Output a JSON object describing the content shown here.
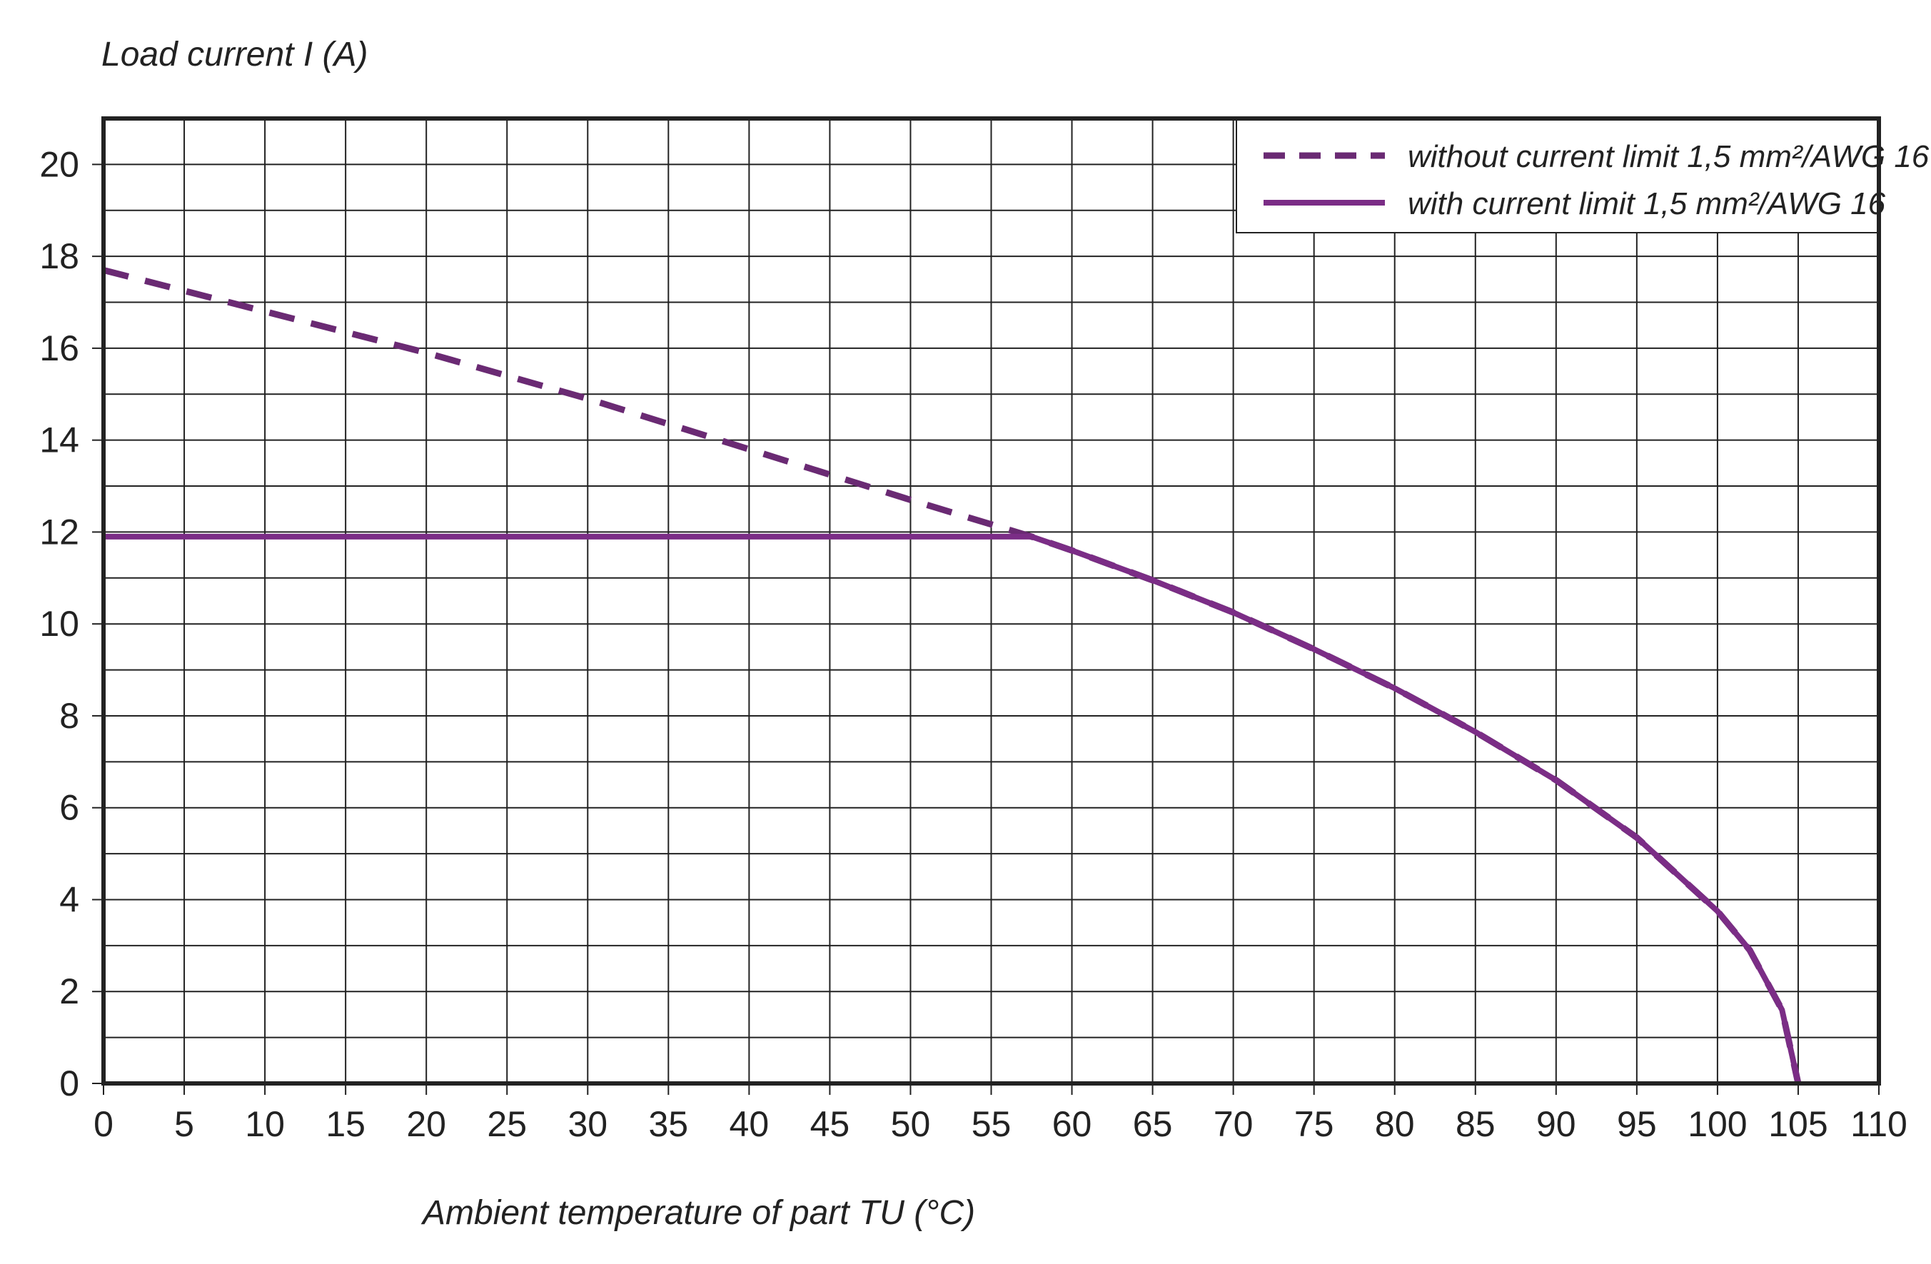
{
  "chart_data": {
    "type": "line",
    "ylabel": "Load current I (A)",
    "xlabel": "Ambient temperature of part TU (°C)",
    "xlim": [
      0,
      110
    ],
    "ylim": [
      0,
      21
    ],
    "x_ticks": [
      0,
      5,
      10,
      15,
      20,
      25,
      30,
      35,
      40,
      45,
      50,
      55,
      60,
      65,
      70,
      75,
      80,
      85,
      90,
      95,
      100,
      105,
      110
    ],
    "y_ticks": [
      0,
      2,
      4,
      6,
      8,
      10,
      12,
      14,
      16,
      18,
      20
    ],
    "grid": true,
    "minor_y_grid_step": 1,
    "legend_position": "top-right",
    "series": [
      {
        "name": "without current limit 1,5 mm²/AWG 16",
        "style": "dashed",
        "color": "#6a2a73",
        "x": [
          0,
          10,
          20,
          30,
          40,
          50,
          57.5,
          60,
          65,
          70,
          75,
          80,
          85,
          90,
          95,
          100,
          102,
          104,
          105
        ],
        "y": [
          17.7,
          16.8,
          15.9,
          14.9,
          13.8,
          12.7,
          11.9,
          11.6,
          10.95,
          10.25,
          9.45,
          8.6,
          7.65,
          6.6,
          5.35,
          3.75,
          2.9,
          1.6,
          0
        ]
      },
      {
        "name": "with current limit 1,5 mm²/AWG 16",
        "style": "solid",
        "color": "#7b2d86",
        "x": [
          0,
          10,
          20,
          30,
          40,
          50,
          57.5,
          60,
          65,
          70,
          75,
          80,
          85,
          90,
          95,
          100,
          102,
          104,
          105
        ],
        "y": [
          11.9,
          11.9,
          11.9,
          11.9,
          11.9,
          11.9,
          11.9,
          11.6,
          10.95,
          10.25,
          9.45,
          8.6,
          7.65,
          6.6,
          5.35,
          3.75,
          2.9,
          1.6,
          0
        ]
      }
    ]
  }
}
